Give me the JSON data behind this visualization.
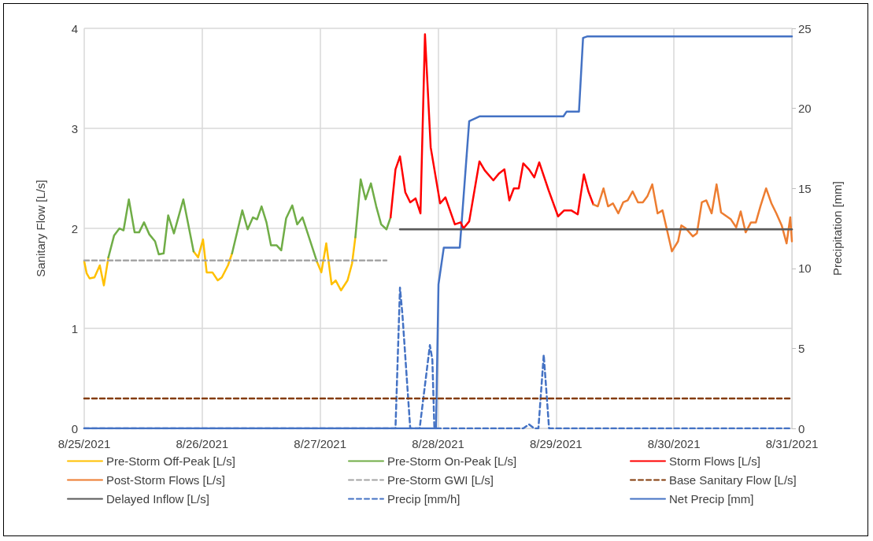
{
  "chart_data": {
    "type": "line",
    "xlabel": null,
    "ylabel": "Sanitary Flow [L/s]",
    "y2label": "Precipitation [mm]",
    "xlim": [
      "2021-08-25",
      "2021-08-31"
    ],
    "xticks": [
      {
        "value": "2021-08-25",
        "label": "8/25/2021"
      },
      {
        "value": "2021-08-26",
        "label": "8/26/2021"
      },
      {
        "value": "2021-08-27",
        "label": "8/27/2021"
      },
      {
        "value": "2021-08-28",
        "label": "8/28/2021"
      },
      {
        "value": "2021-08-29",
        "label": "8/29/2021"
      },
      {
        "value": "2021-08-30",
        "label": "8/30/2021"
      },
      {
        "value": "2021-08-31",
        "label": "8/31/2021"
      }
    ],
    "ylim": [
      0,
      4
    ],
    "yticks": [
      0,
      1,
      2,
      3,
      4
    ],
    "y2lim": [
      0,
      25
    ],
    "y2ticks": [
      0,
      5,
      10,
      15,
      20,
      25
    ],
    "grid": true,
    "legend": "bottom",
    "marker": "none",
    "series": [
      {
        "name": "Pre-Storm Off-Peak [L/s]",
        "color": "#ffc000",
        "line_style": "solid",
        "x": [
          "2021-08-25T00:00",
          "2021-08-25T00:30",
          "2021-08-25T01:05",
          "2021-08-25T02:05",
          "2021-08-25T03:10",
          "2021-08-25T04:00",
          "2021-08-25T04:55",
          "2021-08-25T12:00",
          "2021-08-25T22:15",
          "2021-08-25T23:10",
          "2021-08-26T00:10",
          "2021-08-26T00:55",
          "2021-08-26T02:05",
          "2021-08-26T03:10",
          "2021-08-26T04:00",
          "2021-08-26T05:15",
          "2021-08-26T06:05",
          "2021-08-26T12:00",
          "2021-08-26T23:20",
          "2021-08-27T00:15",
          "2021-08-27T01:15",
          "2021-08-27T02:20",
          "2021-08-27T03:10",
          "2021-08-27T04:15",
          "2021-08-27T05:35",
          "2021-08-27T06:30",
          "2021-08-27T07:10"
        ],
        "values": [
          1.67,
          1.55,
          1.5,
          1.51,
          1.63,
          1.43,
          1.71,
          null,
          1.77,
          1.71,
          1.89,
          1.56,
          1.56,
          1.48,
          1.51,
          1.63,
          1.75,
          null,
          1.67,
          1.56,
          1.85,
          1.44,
          1.48,
          1.38,
          1.48,
          1.65,
          1.91
        ]
      },
      {
        "name": "Pre-Storm On-Peak [L/s]",
        "color": "#70ad47",
        "line_style": "solid",
        "x": [
          "2021-08-25T04:55",
          "2021-08-25T06:05",
          "2021-08-25T07:10",
          "2021-08-25T08:00",
          "2021-08-25T09:05",
          "2021-08-25T10:15",
          "2021-08-25T11:10",
          "2021-08-25T12:10",
          "2021-08-25T13:15",
          "2021-08-25T14:25",
          "2021-08-25T15:10",
          "2021-08-25T16:10",
          "2021-08-25T17:05",
          "2021-08-25T18:15",
          "2021-08-25T20:10",
          "2021-08-25T22:15",
          "2021-08-26T02:00",
          "2021-08-26T06:05",
          "2021-08-26T08:10",
          "2021-08-26T09:15",
          "2021-08-26T10:20",
          "2021-08-26T11:10",
          "2021-08-26T12:05",
          "2021-08-26T13:05",
          "2021-08-26T14:00",
          "2021-08-26T15:10",
          "2021-08-26T16:05",
          "2021-08-26T17:05",
          "2021-08-26T18:20",
          "2021-08-26T19:20",
          "2021-08-26T20:25",
          "2021-08-26T23:20",
          "2021-08-27T03:00",
          "2021-08-27T07:10",
          "2021-08-27T08:15",
          "2021-08-27T09:15",
          "2021-08-27T10:20",
          "2021-08-27T11:25",
          "2021-08-27T12:25",
          "2021-08-27T13:30",
          "2021-08-27T14:20"
        ],
        "values": [
          1.71,
          1.93,
          2.0,
          1.98,
          2.29,
          1.96,
          1.96,
          2.06,
          1.94,
          1.87,
          1.74,
          1.75,
          2.13,
          1.95,
          2.29,
          1.77,
          null,
          1.75,
          2.18,
          1.99,
          2.11,
          2.09,
          2.22,
          2.06,
          1.83,
          1.83,
          1.78,
          2.1,
          2.23,
          2.04,
          2.11,
          1.67,
          null,
          1.91,
          2.49,
          2.29,
          2.45,
          2.22,
          2.04,
          1.99,
          2.11
        ]
      },
      {
        "name": "Storm Flows [L/s]",
        "color": "#ff0000",
        "line_style": "solid",
        "x": [
          "2021-08-27T14:20",
          "2021-08-27T15:20",
          "2021-08-27T16:15",
          "2021-08-27T17:20",
          "2021-08-27T18:20",
          "2021-08-27T19:25",
          "2021-08-27T20:25",
          "2021-08-27T21:20",
          "2021-08-27T22:30",
          "2021-08-28T00:25",
          "2021-08-28T01:30",
          "2021-08-28T03:25",
          "2021-08-28T04:35",
          "2021-08-28T05:10",
          "2021-08-28T06:20",
          "2021-08-28T08:25",
          "2021-08-28T09:30",
          "2021-08-28T11:15",
          "2021-08-28T12:25",
          "2021-08-28T13:30",
          "2021-08-28T14:30",
          "2021-08-28T15:25",
          "2021-08-28T16:25",
          "2021-08-28T17:20",
          "2021-08-28T18:30",
          "2021-08-28T19:35",
          "2021-08-28T20:35",
          "2021-08-28T22:30",
          "2021-08-29T00:25",
          "2021-08-29T01:40",
          "2021-08-29T03:05",
          "2021-08-29T04:25",
          "2021-08-29T05:40",
          "2021-08-29T06:35",
          "2021-08-29T07:35"
        ],
        "values": [
          2.11,
          2.59,
          2.72,
          2.36,
          2.26,
          2.3,
          2.15,
          3.94,
          2.81,
          2.25,
          2.31,
          2.04,
          2.06,
          2.0,
          2.07,
          2.67,
          2.58,
          2.48,
          2.55,
          2.59,
          2.28,
          2.4,
          2.4,
          2.65,
          2.59,
          2.51,
          2.66,
          2.38,
          2.12,
          2.18,
          2.18,
          2.14,
          2.54,
          2.37,
          2.24
        ]
      },
      {
        "name": "Post-Storm Flows [L/s]",
        "color": "#ed7d31",
        "line_style": "solid",
        "x": [
          "2021-08-29T07:35",
          "2021-08-29T08:30",
          "2021-08-29T09:40",
          "2021-08-29T10:35",
          "2021-08-29T11:35",
          "2021-08-29T12:40",
          "2021-08-29T13:40",
          "2021-08-29T14:35",
          "2021-08-29T15:35",
          "2021-08-29T16:40",
          "2021-08-29T17:40",
          "2021-08-29T18:35",
          "2021-08-29T19:35",
          "2021-08-29T20:40",
          "2021-08-29T21:40",
          "2021-08-29T22:25",
          "2021-08-29T23:35",
          "2021-08-30T00:50",
          "2021-08-30T01:30",
          "2021-08-30T02:25",
          "2021-08-30T03:50",
          "2021-08-30T04:40",
          "2021-08-30T05:40",
          "2021-08-30T06:35",
          "2021-08-30T07:40",
          "2021-08-30T08:40",
          "2021-08-30T09:35",
          "2021-08-30T11:35",
          "2021-08-30T12:40",
          "2021-08-30T13:35",
          "2021-08-30T14:35",
          "2021-08-30T15:40",
          "2021-08-30T16:40",
          "2021-08-30T17:35",
          "2021-08-30T18:45",
          "2021-08-30T19:50",
          "2021-08-30T20:50",
          "2021-08-30T21:55",
          "2021-08-30T22:55",
          "2021-08-30T23:40",
          "2021-08-31T00:00"
        ],
        "values": [
          2.24,
          2.22,
          2.4,
          2.22,
          2.25,
          2.15,
          2.26,
          2.28,
          2.37,
          2.26,
          2.26,
          2.32,
          2.44,
          2.15,
          2.18,
          2.02,
          1.77,
          1.87,
          2.03,
          2.0,
          1.92,
          1.95,
          2.26,
          2.28,
          2.15,
          2.44,
          2.16,
          2.09,
          2.01,
          2.17,
          1.96,
          2.06,
          2.06,
          2.22,
          2.4,
          2.25,
          2.15,
          2.03,
          1.85,
          2.11,
          1.87
        ]
      },
      {
        "name": "Pre-Storm GWI [L/s]",
        "color": "#a5a5a5",
        "line_style": "dashed",
        "x": [
          "2021-08-25T00:00",
          "2021-08-27T13:30"
        ],
        "values": [
          1.68,
          1.68
        ]
      },
      {
        "name": "Base Sanitary Flow [L/s]",
        "color": "#843c0c",
        "line_style": "dashed",
        "x": [
          "2021-08-25T00:00",
          "2021-08-31T00:00"
        ],
        "values": [
          0.3,
          0.3
        ]
      },
      {
        "name": "Delayed Inflow [L/s]",
        "color": "#595959",
        "line_style": "solid",
        "x": [
          "2021-08-27T16:15",
          "2021-08-31T00:00"
        ],
        "values": [
          1.99,
          1.99
        ]
      },
      {
        "name": "Precip [mm/h]",
        "color": "#4472c4",
        "line_style": "dashed",
        "axis": "y2",
        "x": [
          "2021-08-25T00:00",
          "2021-08-27T15:20",
          "2021-08-27T16:15",
          "2021-08-27T16:45",
          "2021-08-27T18:20",
          "2021-08-27T20:15",
          "2021-08-27T22:20",
          "2021-08-27T22:50",
          "2021-08-27T23:15",
          "2021-08-28T00:25",
          "2021-08-28T17:20",
          "2021-08-28T18:30",
          "2021-08-28T19:35",
          "2021-08-28T20:25",
          "2021-08-28T21:30",
          "2021-08-28T22:35",
          "2021-08-31T00:00"
        ],
        "values": [
          0,
          0,
          8.8,
          7.1,
          0,
          0,
          5.2,
          4.3,
          0,
          0,
          0,
          0.25,
          0,
          0,
          4.6,
          0,
          0
        ]
      },
      {
        "name": "Net Precip [mm]",
        "color": "#4472c4",
        "line_style": "solid",
        "axis": "y2",
        "x": [
          "2021-08-25T00:00",
          "2021-08-27T23:35",
          "2021-08-28T00:05",
          "2021-08-28T01:10",
          "2021-08-28T04:25",
          "2021-08-28T06:20",
          "2021-08-28T08:25",
          "2021-08-29T01:30",
          "2021-08-29T02:10",
          "2021-08-29T04:40",
          "2021-08-29T05:30",
          "2021-08-29T06:25",
          "2021-08-31T00:00"
        ],
        "values": [
          0,
          0,
          9.0,
          11.3,
          11.3,
          19.2,
          19.5,
          19.5,
          19.8,
          19.8,
          24.4,
          24.5,
          24.5
        ]
      }
    ]
  }
}
